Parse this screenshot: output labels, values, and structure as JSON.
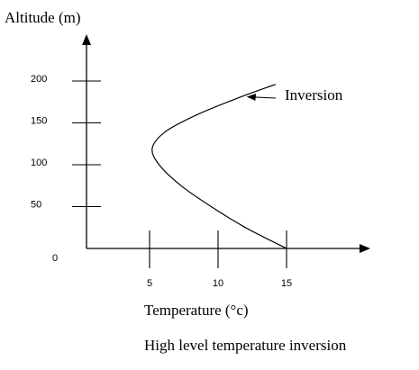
{
  "chart_data": {
    "type": "line",
    "title": "High level temperature inversion",
    "xlabel": "Temperature (°c)",
    "ylabel": "Altitude (m)",
    "xlim": [
      0,
      20
    ],
    "ylim": [
      0,
      220
    ],
    "x_ticks": [
      5,
      10,
      15
    ],
    "y_ticks": [
      50,
      100,
      150,
      200
    ],
    "origin_label": "0",
    "grid": false,
    "series": [
      {
        "points": [
          {
            "temperature": 15,
            "altitude": 0
          },
          {
            "temperature": 12,
            "altitude": 25
          },
          {
            "temperature": 9.5,
            "altitude": 50
          },
          {
            "temperature": 7.3,
            "altitude": 75
          },
          {
            "temperature": 5.7,
            "altitude": 100
          },
          {
            "temperature": 5.2,
            "altitude": 120
          },
          {
            "temperature": 6.2,
            "altitude": 140
          },
          {
            "temperature": 8.5,
            "altitude": 160
          },
          {
            "temperature": 11.5,
            "altitude": 180
          },
          {
            "temperature": 14.2,
            "altitude": 196
          }
        ]
      }
    ],
    "annotations": [
      {
        "text": "Inversion",
        "points_to": {
          "temperature": 11.5,
          "altitude": 180
        }
      }
    ]
  }
}
